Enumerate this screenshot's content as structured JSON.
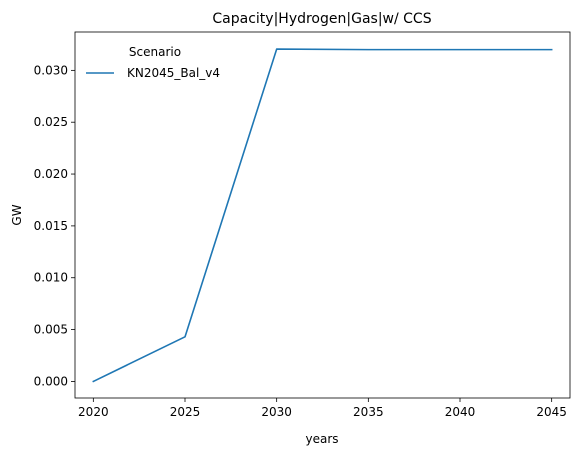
{
  "chart_data": {
    "type": "line",
    "title": "Capacity|Hydrogen|Gas|w/ CCS",
    "xlabel": "years",
    "ylabel": "GW",
    "x": [
      2020,
      2025,
      2030,
      2035,
      2040,
      2045
    ],
    "xticks": [
      "2020",
      "2025",
      "2030",
      "2035",
      "2040",
      "2045"
    ],
    "yticks": [
      "0.000",
      "0.005",
      "0.010",
      "0.015",
      "0.020",
      "0.025",
      "0.030"
    ],
    "ytick_values": [
      0,
      0.005,
      0.01,
      0.015,
      0.02,
      0.025,
      0.03
    ],
    "xlim": [
      2019,
      2046
    ],
    "ylim": [
      -0.0016,
      0.0337
    ],
    "grid": false,
    "legend": {
      "title": "Scenario",
      "placement": "top-left"
    },
    "series": [
      {
        "name": "KN2045_Bal_v4",
        "color": "#1f77b4",
        "values": [
          0.0,
          0.0043,
          0.03205,
          0.032,
          0.032,
          0.032
        ]
      }
    ]
  }
}
